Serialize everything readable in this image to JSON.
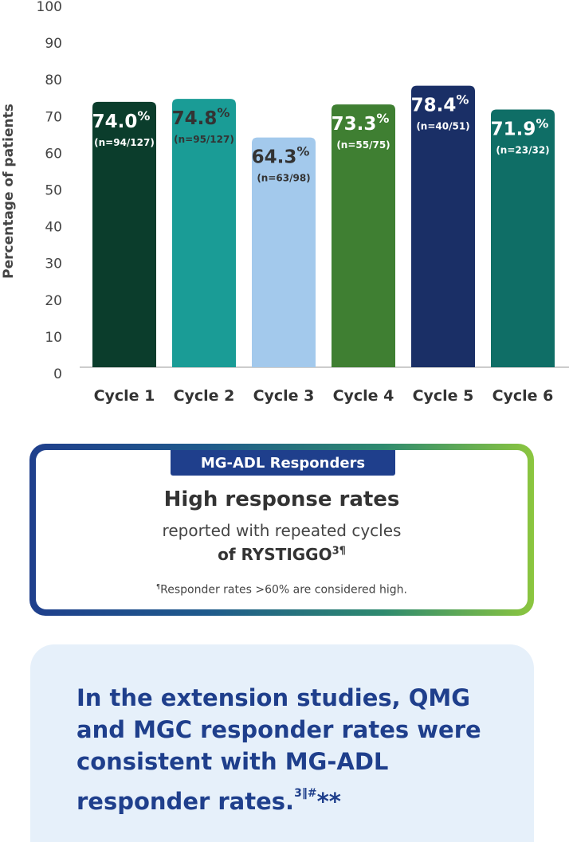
{
  "chart_data": {
    "type": "bar",
    "categories": [
      "Cycle 1",
      "Cycle 2",
      "Cycle 3",
      "Cycle 4",
      "Cycle 5",
      "Cycle 6"
    ],
    "values": [
      74.0,
      74.8,
      64.3,
      73.3,
      78.4,
      71.9
    ],
    "value_labels": [
      "74.0",
      "74.8",
      "64.3",
      "73.3",
      "78.4",
      "71.9"
    ],
    "percent_symbol": "%",
    "n_labels": [
      "(n=94/127)",
      "(n=95/127)",
      "(n=63/98)",
      "(n=55/75)",
      "(n=40/51)",
      "(n=23/32)"
    ],
    "bar_colors": [
      "#0b3d2c",
      "#1a9c96",
      "#a3c9ec",
      "#3f7f32",
      "#1a2f66",
      "#0f6e66"
    ],
    "label_colors": [
      "#ffffff",
      "#333333",
      "#333333",
      "#ffffff",
      "#ffffff",
      "#ffffff"
    ],
    "ylabel": "Percentage of patients",
    "ylim": [
      0,
      100
    ],
    "yticks": [
      0,
      10,
      20,
      30,
      40,
      50,
      60,
      70,
      80,
      90,
      100
    ],
    "grid": false
  },
  "card": {
    "tab_label": "MG-ADL Responders",
    "title": "High response rates",
    "line1": "reported with repeated cycles",
    "line2_prefix": "of RYSTIGGO",
    "line2_sup": "3¶",
    "footnote_mark": "¶",
    "footnote": "Responder rates >60% are considered high."
  },
  "callout": {
    "text": "In the extension studies, QMG and MGC responder rates were consistent with MG-ADL responder rates.",
    "sup": "3‖#",
    "stars": "**"
  },
  "colors": {
    "primary_blue": "#1f3f8c",
    "callout_bg": "#e6f0fa",
    "gradient_end": "#8cc63f"
  }
}
